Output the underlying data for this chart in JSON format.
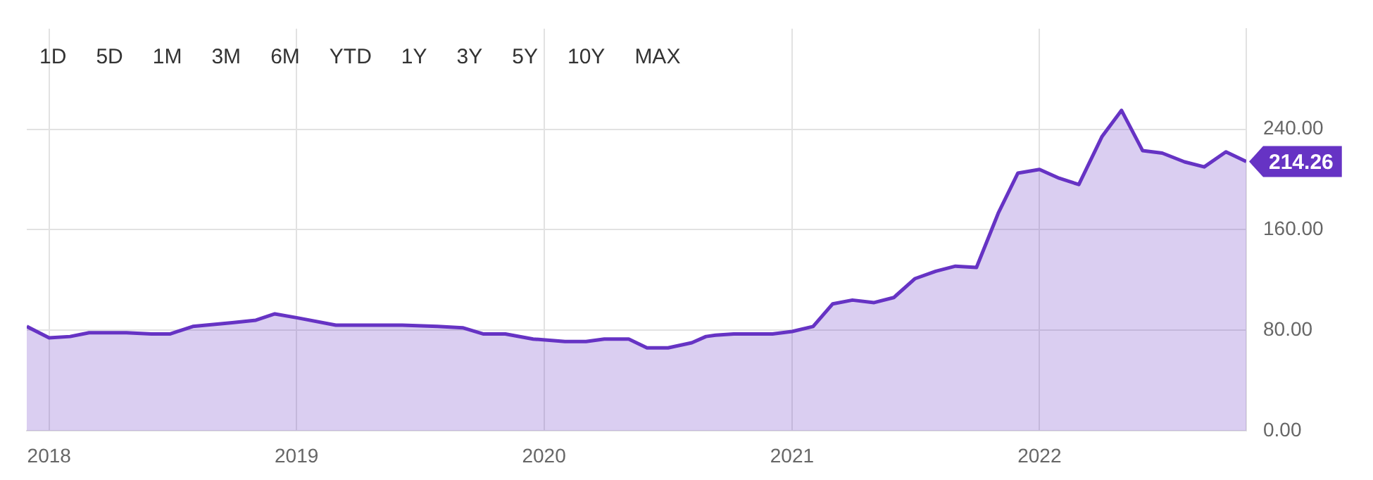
{
  "chart_data": {
    "type": "area",
    "x": [
      "2017-11-29",
      "2018-01-01",
      "2018-02-01",
      "2018-03-01",
      "2018-04-25",
      "2018-06-01",
      "2018-06-28",
      "2018-08-01",
      "2018-09-28",
      "2018-11-02",
      "2018-11-30",
      "2019-01-01",
      "2019-02-28",
      "2019-04-05",
      "2019-06-06",
      "2019-07-28",
      "2019-09-03",
      "2019-10-04",
      "2019-11-05",
      "2019-12-16",
      "2020-02-01",
      "2020-03-03",
      "2020-03-30",
      "2020-05-05",
      "2020-06-01",
      "2020-07-02",
      "2020-08-06",
      "2020-08-27",
      "2020-09-10",
      "2020-10-07",
      "2020-12-03",
      "2021-01-01",
      "2021-02-01",
      "2021-03-02",
      "2021-03-31",
      "2021-05-02",
      "2021-05-31",
      "2021-07-01",
      "2021-08-01",
      "2021-08-30",
      "2021-09-30",
      "2021-11-01",
      "2021-11-30",
      "2022-01-01",
      "2022-01-30",
      "2022-02-28",
      "2022-04-03",
      "2022-05-02",
      "2022-06-02",
      "2022-07-01",
      "2022-08-03",
      "2022-09-01",
      "2022-10-03",
      "2022-11-02"
    ],
    "series": [
      {
        "color": "#6633c4",
        "values": [
          83,
          74,
          75,
          78,
          78,
          77,
          77,
          83,
          86,
          88,
          93,
          90,
          84,
          84,
          84,
          83,
          82,
          77,
          77,
          73,
          71,
          71,
          73,
          73,
          66,
          66,
          70,
          75,
          76,
          77,
          77,
          79,
          83,
          101,
          104,
          102,
          106,
          121,
          127,
          131,
          130,
          173,
          205,
          208,
          201,
          196,
          234,
          255,
          223,
          221,
          214,
          210,
          222,
          214.26
        ]
      }
    ],
    "xlim": [
      "2017-11-29",
      "2022-11-02"
    ],
    "xticks": [
      {
        "value": "2018-01-01",
        "label": "2018"
      },
      {
        "value": "2019-01-01",
        "label": "2019"
      },
      {
        "value": "2020-01-01",
        "label": "2020"
      },
      {
        "value": "2021-01-01",
        "label": "2021"
      },
      {
        "value": "2022-01-01",
        "label": "2022"
      }
    ],
    "ylim": [
      0,
      320
    ],
    "yticks": [
      {
        "value": 0,
        "label": "0.00"
      },
      {
        "value": 80,
        "label": "80.00"
      },
      {
        "value": 160,
        "label": "160.00"
      },
      {
        "value": 240,
        "label": "240.00"
      }
    ],
    "grid": true,
    "legend": false,
    "marker": "none",
    "line_style": "solid",
    "annotations": [
      "1D",
      "5D",
      "1M",
      "3M",
      "6M",
      "YTD",
      "1Y",
      "3Y",
      "5Y",
      "10Y",
      "MAX",
      {
        "text": "214.26",
        "x": "2022-11-02",
        "y": 214.26
      }
    ]
  }
}
